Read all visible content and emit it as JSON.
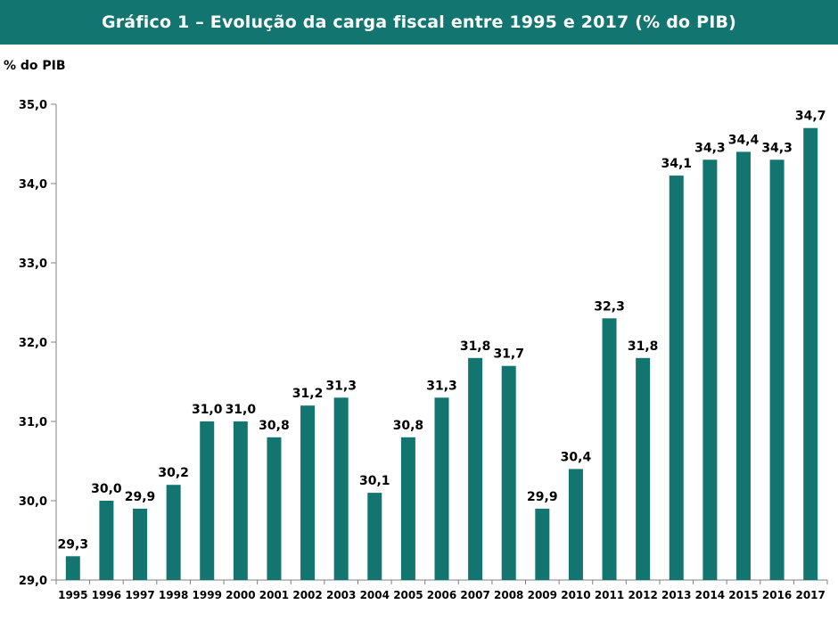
{
  "chart_data": {
    "type": "bar",
    "title": "Gráfico 1 – Evolução da carga fiscal entre 1995 e 2017 (% do PIB)",
    "ylabel": "% do PIB",
    "xlabel": "",
    "categories": [
      "1995",
      "1996",
      "1997",
      "1998",
      "1999",
      "2000",
      "2001",
      "2002",
      "2003",
      "2004",
      "2005",
      "2006",
      "2007",
      "2008",
      "2009",
      "2010",
      "2011",
      "2012",
      "2013",
      "2014",
      "2015",
      "2016",
      "2017"
    ],
    "values": [
      29.3,
      30.0,
      29.9,
      30.2,
      31.0,
      31.0,
      30.8,
      31.2,
      31.3,
      30.1,
      30.8,
      31.3,
      31.8,
      31.7,
      29.9,
      30.4,
      32.3,
      31.8,
      34.1,
      34.3,
      34.4,
      34.3,
      34.7
    ],
    "data_labels": [
      "29,3",
      "30,0",
      "29,9",
      "30,2",
      "31,0",
      "31,0",
      "30,8",
      "31,2",
      "31,3",
      "30,1",
      "30,8",
      "31,3",
      "31,8",
      "31,7",
      "29,9",
      "30,4",
      "32,3",
      "31,8",
      "34,1",
      "34,3",
      "34,4",
      "34,3",
      "34,7"
    ],
    "ylim": [
      29.0,
      35.0
    ],
    "yticks": [
      29.0,
      30.0,
      31.0,
      32.0,
      33.0,
      34.0,
      35.0
    ],
    "ytick_labels": [
      "29,0",
      "30,0",
      "31,0",
      "32,0",
      "33,0",
      "34,0",
      "35,0"
    ],
    "grid": false,
    "legend": "none",
    "bar_color": "#137570",
    "title_bar_color": "#137570"
  }
}
